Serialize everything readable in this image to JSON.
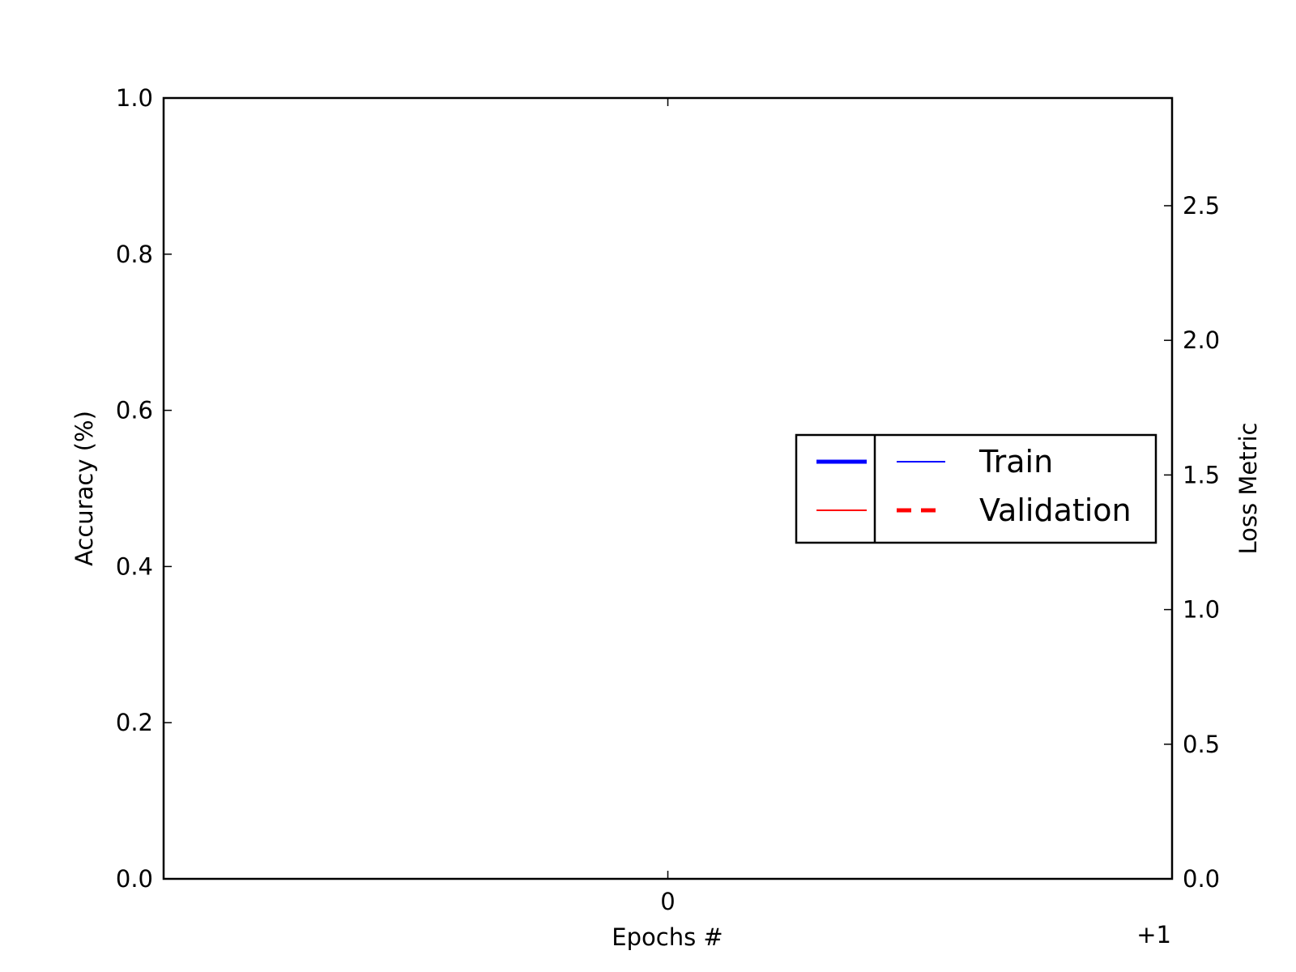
{
  "chart_data": {
    "type": "line",
    "xlabel": "Epochs #",
    "ylabel": "Accuracy (%)",
    "y2label": "Loss Metric",
    "x_offset_label": "+1",
    "x_ticks": [
      0
    ],
    "x_tick_labels": [
      "0"
    ],
    "xlim": [
      -1,
      1
    ],
    "ylim": [
      0,
      1
    ],
    "y_ticks": [
      0,
      0.2,
      0.4,
      0.6,
      0.8,
      1.0
    ],
    "y_tick_labels": [
      "0.0",
      "0.2",
      "0.4",
      "0.6",
      "0.8",
      "1.0"
    ],
    "y2lim": [
      0,
      2.9
    ],
    "y2_ticks": [
      0,
      0.5,
      1.0,
      1.5,
      2.0,
      2.5
    ],
    "y2_tick_labels": [
      "0.0",
      "0.5",
      "1.0",
      "1.5",
      "2.0",
      "2.5"
    ],
    "grid": false,
    "legend_position": "center-right",
    "legend_rows": [
      {
        "label": "Train",
        "accuracy_style": {
          "color": "#0000ff",
          "dash": "solid",
          "weight": "thick"
        },
        "loss_style": {
          "color": "#0000ff",
          "dash": "solid",
          "weight": "thin"
        }
      },
      {
        "label": "Validation",
        "accuracy_style": {
          "color": "#ff0000",
          "dash": "solid",
          "weight": "thin"
        },
        "loss_style": {
          "color": "#ff0000",
          "dash": "dashed",
          "weight": "thick"
        }
      }
    ],
    "series": [],
    "colors": {
      "axis": "#000000",
      "y2label": "#ff0000"
    }
  }
}
